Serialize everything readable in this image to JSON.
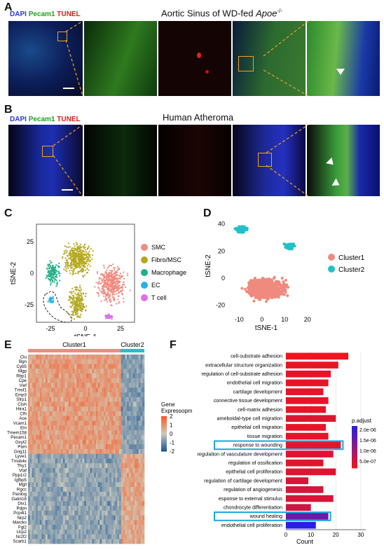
{
  "panels": {
    "A": {
      "label": "A",
      "title": "Aortic Sinus of WD-fed",
      "title_italic": "Apoe",
      "title_sup": "-/-"
    },
    "B": {
      "label": "B",
      "title": "Human Atheroma"
    },
    "C": {
      "label": "C"
    },
    "D": {
      "label": "D"
    },
    "E": {
      "label": "E"
    },
    "F": {
      "label": "F"
    }
  },
  "stains": {
    "dapi": "DAPI",
    "pecam1": "Pecam1",
    "tunel": "TUNEL"
  },
  "colors": {
    "smc": "#f08a7e",
    "fibro": "#b4a81f",
    "macrophage": "#22b08a",
    "ec": "#2ab0e8",
    "tcell": "#e16ee8",
    "cluster1": "#f08a7e",
    "cluster2": "#22c0c8",
    "highlight": "#1aa7e0"
  },
  "chart_data": [
    {
      "type": "scatter",
      "panel": "C",
      "xlabel": "tSNE-1",
      "ylabel": "tSNE-2",
      "xticks": [
        "-25",
        "0",
        "25"
      ],
      "yticks": [
        "25",
        "0",
        "-25"
      ],
      "legend": [
        "SMC",
        "Fibro/MSC",
        "Macrophage",
        "EC",
        "T cell"
      ],
      "legend_position": "right"
    },
    {
      "type": "scatter",
      "panel": "D",
      "xlabel": "tSNE-1",
      "ylabel": "tSNE-2",
      "xticks": [
        "-10",
        "0",
        "10",
        "20"
      ],
      "yticks": [
        "40",
        "20",
        "0",
        "-20"
      ],
      "legend": [
        "Cluster1",
        "Cluster2"
      ],
      "legend_position": "right"
    },
    {
      "type": "heatmap",
      "panel": "E",
      "column_groups": [
        "Cluster1",
        "Cluster2"
      ],
      "genes": [
        "Clu",
        "Bgn",
        "Cyb5",
        "Mgp",
        "Rbp1",
        "Cpe",
        "Vwf",
        "Tmsf1",
        "Emp3",
        "Sfrp1",
        "Ctsh",
        "Htra1",
        "Cfh",
        "Ace",
        "Vcam1",
        "Eln",
        "Tmem158",
        "Pecam1",
        "Gxyt2",
        "Pam",
        "Gng11",
        "Lyve1",
        "Tmsb4x",
        "Thy1",
        "Vtaf",
        "Ppp1r2",
        "Igfbp5",
        "Mgll",
        "Rgcc",
        "Pardog",
        "Galnt18",
        "Dtx1",
        "Pdpn",
        "Pcp4l1",
        "Nrp2",
        "Marcks",
        "Fgl2",
        "Ucp2",
        "Nr2f2",
        "Scarb1"
      ],
      "colorbar_title": "Gene Expressopm",
      "colorbar_ticks": [
        "2",
        "1",
        "0",
        "-1",
        "-2"
      ]
    },
    {
      "type": "bar",
      "panel": "F",
      "orientation": "horizontal",
      "xlabel": "Count",
      "xticks": [
        "0",
        "10",
        "20",
        "30"
      ],
      "xlim": [
        0,
        32
      ],
      "categories": [
        "cell-substrate adhesion",
        "extracellular structure organization",
        "regulation of cell-substrate adhesion",
        "endothelial cell migration",
        "cartilage development",
        "connective tissue development",
        "cell-matrix adhesion",
        "ameboidal-type cell migration",
        "epithelial cell migration",
        "tissue migration",
        "response to wounding",
        "regulation of vasculature development",
        "regulation of ossification",
        "epithelial cell proliferation",
        "regulation of cartilage development",
        "regulation of angiogenesis",
        "esponse to external stimulus",
        "chondrocyte differentiation",
        "wound healing",
        "endothelial cell proliferation"
      ],
      "values": [
        25,
        21,
        18,
        17,
        15,
        17,
        16,
        20,
        16,
        17,
        22,
        19,
        15,
        20,
        9,
        15,
        19,
        10,
        17,
        12
      ],
      "p_adjust": [
        1e-09,
        5e-08,
        1e-07,
        1e-07,
        1e-07,
        1e-07,
        1e-07,
        2e-07,
        1e-07,
        1e-07,
        1e-07,
        2e-07,
        2e-07,
        2e-07,
        3e-07,
        3e-07,
        3e-07,
        4e-07,
        1.5e-06,
        2.2e-06
      ],
      "highlighted": [
        "response to wounding",
        "wound healing"
      ],
      "colorbar_title": "p.adjust",
      "colorbar_ticks": [
        "2.0e-06",
        "1.5e-06",
        "1.0e-06",
        "5.0e-07"
      ]
    }
  ]
}
